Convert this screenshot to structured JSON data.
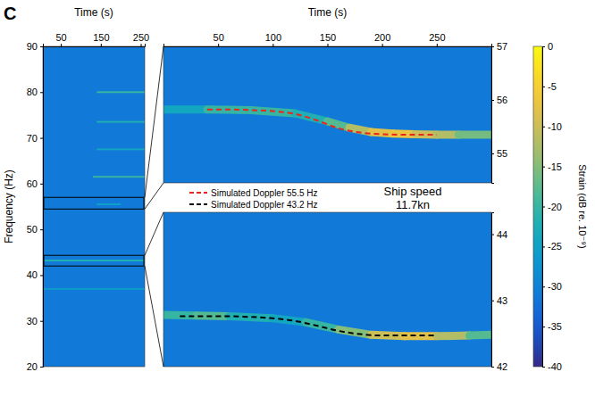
{
  "panel_label": "C",
  "chart_data": [
    {
      "type": "spectrogram",
      "xlabel": "Time (s)",
      "ylabel": "Frequency (Hz)",
      "xlim": [
        5,
        260
      ],
      "xticks": [
        50,
        150,
        250
      ],
      "ylim": [
        20,
        90
      ],
      "yticks": [
        20,
        30,
        40,
        50,
        60,
        70,
        80,
        90
      ],
      "background_level": -31,
      "tones": [
        {
          "frequency": 80,
          "start": 140,
          "end": 260,
          "level": -20
        },
        {
          "frequency": 73.5,
          "start": 140,
          "end": 260,
          "level": -22
        },
        {
          "frequency": 67.5,
          "start": 140,
          "end": 260,
          "level": -24
        },
        {
          "frequency": 61.5,
          "start": 130,
          "end": 260,
          "level": -20
        },
        {
          "frequency": 55.5,
          "start": 140,
          "end": 200,
          "level": -25
        },
        {
          "frequency": 43.2,
          "start": 5,
          "end": 260,
          "level": -22
        },
        {
          "frequency": 37,
          "start": 5,
          "end": 260,
          "level": -26
        }
      ]
    },
    {
      "type": "spectrogram",
      "xlabel": "Time (s)",
      "xlim": [
        0,
        300
      ],
      "xticks": [
        50,
        100,
        150,
        200,
        250
      ],
      "ylim": [
        54.45,
        57
      ],
      "yticks": [
        55,
        56,
        57
      ],
      "background_level": -31,
      "track": {
        "x": [
          0,
          40,
          80,
          120,
          150,
          170,
          190,
          210,
          230,
          250,
          270,
          300
        ],
        "values": [
          55.82,
          55.82,
          55.81,
          55.75,
          55.6,
          55.48,
          55.4,
          55.37,
          55.36,
          55.35,
          55.35,
          55.35
        ],
        "level": [
          -24,
          -20,
          -20,
          -22,
          -18,
          -12,
          -8,
          -7,
          -10,
          -12,
          -16,
          -22
        ]
      },
      "series": [
        {
          "name": "Simulated Doppler 55.5 Hz",
          "color": "#e8251f",
          "line_style": "dashed",
          "x": [
            40,
            60,
            80,
            100,
            120,
            140,
            160,
            180,
            200,
            220,
            240,
            250
          ],
          "values": [
            55.82,
            55.82,
            55.81,
            55.79,
            55.74,
            55.62,
            55.47,
            55.39,
            55.36,
            55.35,
            55.35,
            55.35
          ]
        }
      ]
    },
    {
      "type": "spectrogram",
      "tick_labels": "y",
      "xlim": [
        0,
        300
      ],
      "xticks": [
        50,
        100,
        150,
        200,
        250
      ],
      "ylim": [
        42,
        44.33
      ],
      "yticks": [
        42,
        43,
        44
      ],
      "background_level": -31,
      "track": {
        "x": [
          0,
          30,
          60,
          100,
          130,
          160,
          190,
          220,
          250,
          280,
          300
        ],
        "values": [
          42.78,
          42.77,
          42.76,
          42.73,
          42.67,
          42.56,
          42.48,
          42.46,
          42.46,
          42.47,
          42.48
        ],
        "level": [
          -20,
          -18,
          -22,
          -24,
          -20,
          -15,
          -10,
          -8,
          -12,
          -18,
          -22
        ]
      },
      "series": [
        {
          "name": "Simulated Doppler 43.2 Hz",
          "color": "#000000",
          "line_style": "dashed",
          "x": [
            15,
            40,
            60,
            80,
            100,
            120,
            140,
            160,
            180,
            200,
            220,
            248
          ],
          "values": [
            42.76,
            42.76,
            42.76,
            42.75,
            42.73,
            42.69,
            42.62,
            42.54,
            42.49,
            42.47,
            42.47,
            42.47
          ]
        }
      ]
    }
  ],
  "annotation": [
    "Ship speed",
    "11.7kn"
  ],
  "colorbar": {
    "label": "Strain (dB re. 10⁻⁹)",
    "range": [
      -40,
      0
    ],
    "ticks": [
      0,
      -5,
      -10,
      -15,
      -20,
      -25,
      -30,
      -35,
      -40
    ]
  }
}
